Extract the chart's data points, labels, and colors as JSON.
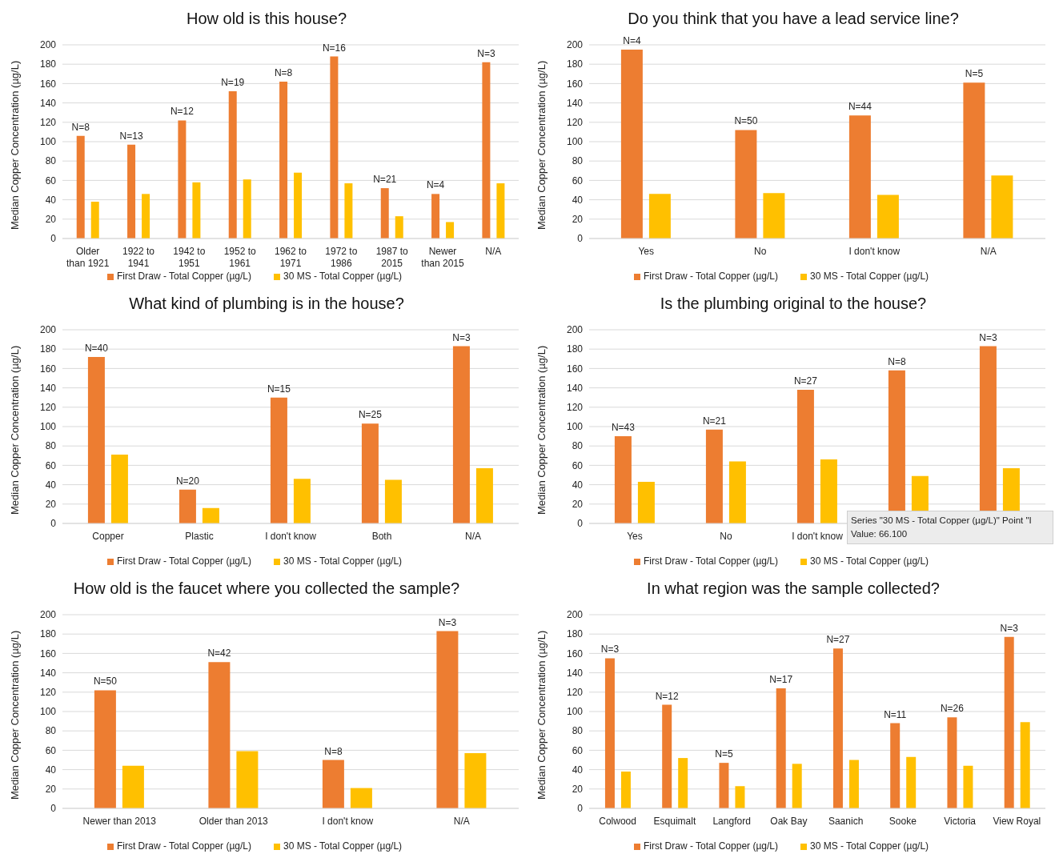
{
  "chart_data": [
    {
      "type": "bar",
      "title": "How old is this house?",
      "ylabel": "Median Copper Concentration (µg/L)",
      "categories": [
        "Older than 1921",
        "1922 to 1941",
        "1942 to 1951",
        "1952 to 1961",
        "1962 to 1971",
        "1972 to 1986",
        "1987 to 2015",
        "Newer than 2015",
        "N/A"
      ],
      "ylim": [
        0,
        200
      ],
      "yticks": [
        0,
        20,
        40,
        60,
        80,
        100,
        120,
        140,
        160,
        180,
        200
      ],
      "grid": "y",
      "legend": "bottom",
      "annotations": [
        {
          "text": "N=8",
          "x": "Older than 1921",
          "y": 106
        },
        {
          "text": "N=13",
          "x": "1922 to 1941",
          "y": 97
        },
        {
          "text": "N=12",
          "x": "1942 to 1951",
          "y": 122
        },
        {
          "text": "N=19",
          "x": "1952 to 1961",
          "y": 152
        },
        {
          "text": "N=8",
          "x": "1962 to 1971",
          "y": 162
        },
        {
          "text": "N=16",
          "x": "1972 to 1986",
          "y": 188
        },
        {
          "text": "N=21",
          "x": "1987 to 2015",
          "y": 52
        },
        {
          "text": "N=4",
          "x": "Newer than 2015",
          "y": 46
        },
        {
          "text": "N=3",
          "x": "N/A",
          "y": 182
        }
      ],
      "series": [
        {
          "name": "First Draw - Total Copper (µg/L)",
          "color": "#ed7d31",
          "values": [
            106,
            97,
            122,
            152,
            162,
            188,
            52,
            46,
            182
          ]
        },
        {
          "name": "30 MS - Total Copper (µg/L)",
          "color": "#ffc000",
          "values": [
            38,
            46,
            58,
            61,
            68,
            57,
            23,
            17,
            57
          ]
        }
      ]
    },
    {
      "type": "bar",
      "title": "Do you think that you have a lead service line?",
      "ylabel": "Median Copper Concentration (µg/L)",
      "categories": [
        "Yes",
        "No",
        "I don't know",
        "N/A"
      ],
      "ylim": [
        0,
        200
      ],
      "yticks": [
        0,
        20,
        40,
        60,
        80,
        100,
        120,
        140,
        160,
        180,
        200
      ],
      "grid": "y",
      "legend": "bottom",
      "annotations": [
        {
          "text": "N=4",
          "x": "Yes",
          "y": 195
        },
        {
          "text": "N=50",
          "x": "No",
          "y": 112
        },
        {
          "text": "N=44",
          "x": "I don't know",
          "y": 127
        },
        {
          "text": "N=5",
          "x": "N/A",
          "y": 161
        }
      ],
      "series": [
        {
          "name": "First Draw - Total Copper (µg/L)",
          "color": "#ed7d31",
          "values": [
            195,
            112,
            127,
            161
          ]
        },
        {
          "name": "30 MS - Total Copper (µg/L)",
          "color": "#ffc000",
          "values": [
            46,
            47,
            45,
            65
          ]
        }
      ]
    },
    {
      "type": "bar",
      "title": "What kind of plumbing is in the house?",
      "ylabel": "Median Copper Concentration (µg/L)",
      "categories": [
        "Copper",
        "Plastic",
        "I don't know",
        "Both",
        "N/A"
      ],
      "ylim": [
        0,
        200
      ],
      "yticks": [
        0,
        20,
        40,
        60,
        80,
        100,
        120,
        140,
        160,
        180,
        200
      ],
      "grid": "y",
      "legend": "bottom",
      "annotations": [
        {
          "text": "N=40",
          "x": "Copper",
          "y": 172
        },
        {
          "text": "N=20",
          "x": "Plastic",
          "y": 35
        },
        {
          "text": "N=15",
          "x": "I don't know",
          "y": 130
        },
        {
          "text": "N=25",
          "x": "Both",
          "y": 103
        },
        {
          "text": "N=3",
          "x": "N/A",
          "y": 183
        }
      ],
      "series": [
        {
          "name": "First Draw - Total Copper (µg/L)",
          "color": "#ed7d31",
          "values": [
            172,
            35,
            130,
            103,
            183
          ]
        },
        {
          "name": "30 MS - Total Copper (µg/L)",
          "color": "#ffc000",
          "values": [
            71,
            16,
            46,
            45,
            57
          ]
        }
      ]
    },
    {
      "type": "bar",
      "title": "Is the plumbing original to the house?",
      "ylabel": "Median Copper Concentration (µg/L)",
      "categories": [
        "Yes",
        "No",
        "I don't know",
        null,
        null
      ],
      "ylim": [
        0,
        200
      ],
      "yticks": [
        0,
        20,
        40,
        60,
        80,
        100,
        120,
        140,
        160,
        180,
        200
      ],
      "grid": "y",
      "legend": "bottom",
      "annotations": [
        {
          "text": "N=43",
          "x": "Yes",
          "y": 90
        },
        {
          "text": "N=21",
          "x": "No",
          "y": 97
        },
        {
          "text": "N=27",
          "x": "I don't know",
          "y": 138
        },
        {
          "text": "N=8",
          "y": 158
        },
        {
          "text": "N=3",
          "y": 183
        },
        "Series \"30 MS - Total Copper (µg/L)\" Point \"I",
        "Value: 66.100"
      ],
      "series": [
        {
          "name": "First Draw - Total Copper (µg/L)",
          "color": "#ed7d31",
          "values": [
            90,
            97,
            138,
            158,
            183
          ]
        },
        {
          "name": "30 MS - Total Copper (µg/L)",
          "color": "#ffc000",
          "values": [
            43,
            64,
            66.1,
            49,
            57
          ]
        }
      ]
    },
    {
      "type": "bar",
      "title": "How old is the faucet where you collected the sample?",
      "ylabel": "Median Copper Concentration (µg/L)",
      "categories": [
        "Newer than 2013",
        "Older than 2013",
        "I don't know",
        "N/A"
      ],
      "ylim": [
        0,
        200
      ],
      "yticks": [
        0,
        20,
        40,
        60,
        80,
        100,
        120,
        140,
        160,
        180,
        200
      ],
      "grid": "y",
      "legend": "bottom",
      "annotations": [
        {
          "text": "N=50",
          "x": "Newer than 2013",
          "y": 122
        },
        {
          "text": "N=42",
          "x": "Older than 2013",
          "y": 151
        },
        {
          "text": "N=8",
          "x": "I don't know",
          "y": 50
        },
        {
          "text": "N=3",
          "x": "N/A",
          "y": 183
        }
      ],
      "series": [
        {
          "name": "First Draw - Total Copper (µg/L)",
          "color": "#ed7d31",
          "values": [
            122,
            151,
            50,
            183
          ]
        },
        {
          "name": "30 MS - Total Copper (µg/L)",
          "color": "#ffc000",
          "values": [
            44,
            59,
            21,
            57
          ]
        }
      ]
    },
    {
      "type": "bar",
      "title": "In what region was the sample collected?",
      "ylabel": "Median Copper Concentration (µg/L)",
      "categories": [
        "Colwood",
        "Esquimalt",
        "Langford",
        "Oak Bay",
        "Saanich",
        "Sooke",
        "Victoria",
        "View Royal"
      ],
      "ylim": [
        0,
        200
      ],
      "yticks": [
        0,
        20,
        40,
        60,
        80,
        100,
        120,
        140,
        160,
        180,
        200
      ],
      "grid": "y",
      "legend": "bottom",
      "annotations": [
        {
          "text": "N=3",
          "x": "Colwood",
          "y": 155
        },
        {
          "text": "N=12",
          "x": "Esquimalt",
          "y": 107
        },
        {
          "text": "N=5",
          "x": "Langford",
          "y": 47
        },
        {
          "text": "N=17",
          "x": "Oak Bay",
          "y": 124
        },
        {
          "text": "N=27",
          "x": "Saanich",
          "y": 165
        },
        {
          "text": "N=11",
          "x": "Sooke",
          "y": 88
        },
        {
          "text": "N=26",
          "x": "Victoria",
          "y": 94
        },
        {
          "text": "N=3",
          "x": "View Royal",
          "y": 177
        }
      ],
      "series": [
        {
          "name": "First Draw - Total Copper (µg/L)",
          "color": "#ed7d31",
          "values": [
            155,
            107,
            47,
            124,
            165,
            88,
            94,
            177
          ]
        },
        {
          "name": "30 MS - Total Copper (µg/L)",
          "color": "#ffc000",
          "values": [
            38,
            52,
            23,
            46,
            50,
            53,
            44,
            89
          ]
        }
      ]
    }
  ]
}
